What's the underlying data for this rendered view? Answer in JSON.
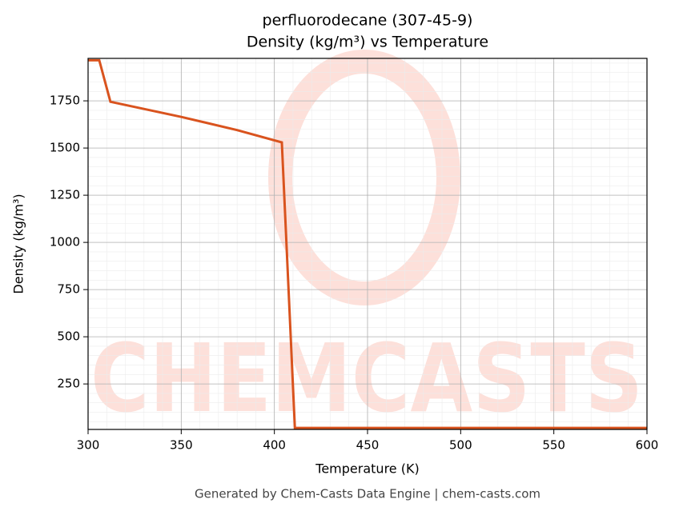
{
  "chart_data": {
    "type": "line",
    "title": "perfluorodecane (307-45-9)",
    "subtitle": "Density (kg/m³) vs Temperature",
    "x_label": "Temperature (K)",
    "y_label": "Density (kg/m³)",
    "footer": "Generated by Chem-Casts Data Engine | chem-casts.com",
    "watermark": "CHEMCASTS",
    "x": [
      300,
      306,
      312,
      350,
      380,
      404,
      411,
      600
    ],
    "series": [
      {
        "name": "Density",
        "color": "#d9531e",
        "values": [
          1965,
          1965,
          1745,
          1665,
          1595,
          1530,
          17,
          17
        ]
      }
    ],
    "xlim": [
      300,
      600
    ],
    "xticks": [
      300,
      350,
      400,
      450,
      500,
      550,
      600
    ],
    "ylim": [
      9,
      1975
    ],
    "yticks": [
      250,
      500,
      750,
      1000,
      1250,
      1500,
      1750
    ],
    "grid": true
  }
}
